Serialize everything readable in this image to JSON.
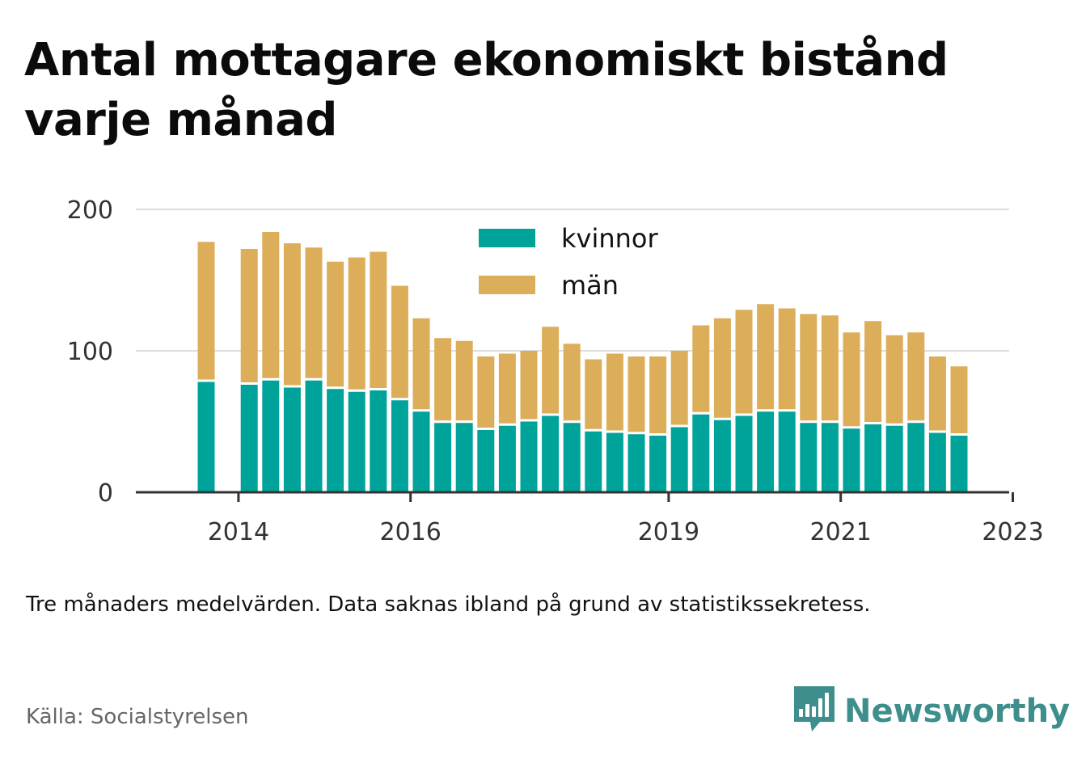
{
  "title": "Antal mottagare ekonomiskt bistånd varje månad",
  "note": "Tre månaders medelvärden. Data saknas ibland på grund av statistikssekretess.",
  "source": "Källa: Socialstyrelsen",
  "brand": {
    "name": "Newsworthy",
    "icon": "bar-chart-speech-bubble-icon",
    "color": "#3d8e8c"
  },
  "colors": {
    "kvinnor": "#00a39a",
    "man": "#dcae5a",
    "grid": "#dddddd",
    "axis": "#333333"
  },
  "chart_data": {
    "type": "bar",
    "stacked": true,
    "x_ticks": [
      "2014",
      "2016",
      "2019",
      "2021",
      "2023"
    ],
    "x_tick_positions": [
      1.5,
      9.5,
      21.5,
      29.5,
      37.5
    ],
    "y_ticks": [
      0,
      100,
      200
    ],
    "ylim": [
      0,
      200
    ],
    "grid": true,
    "legend_position": "top-center",
    "series": [
      {
        "name": "kvinnor",
        "values": [
          78,
          null,
          76,
          79,
          74,
          79,
          73,
          71,
          72,
          65,
          57,
          49,
          49,
          44,
          47,
          50,
          54,
          49,
          43,
          42,
          41,
          40,
          46,
          55,
          51,
          54,
          57,
          57,
          49,
          49,
          45,
          48,
          47,
          49,
          42,
          40
        ]
      },
      {
        "name": "män",
        "values": [
          99,
          null,
          96,
          105,
          102,
          94,
          90,
          95,
          98,
          81,
          66,
          60,
          58,
          52,
          51,
          50,
          63,
          56,
          51,
          56,
          55,
          56,
          54,
          63,
          72,
          75,
          76,
          73,
          77,
          76,
          68,
          73,
          64,
          64,
          54,
          49
        ]
      }
    ]
  }
}
